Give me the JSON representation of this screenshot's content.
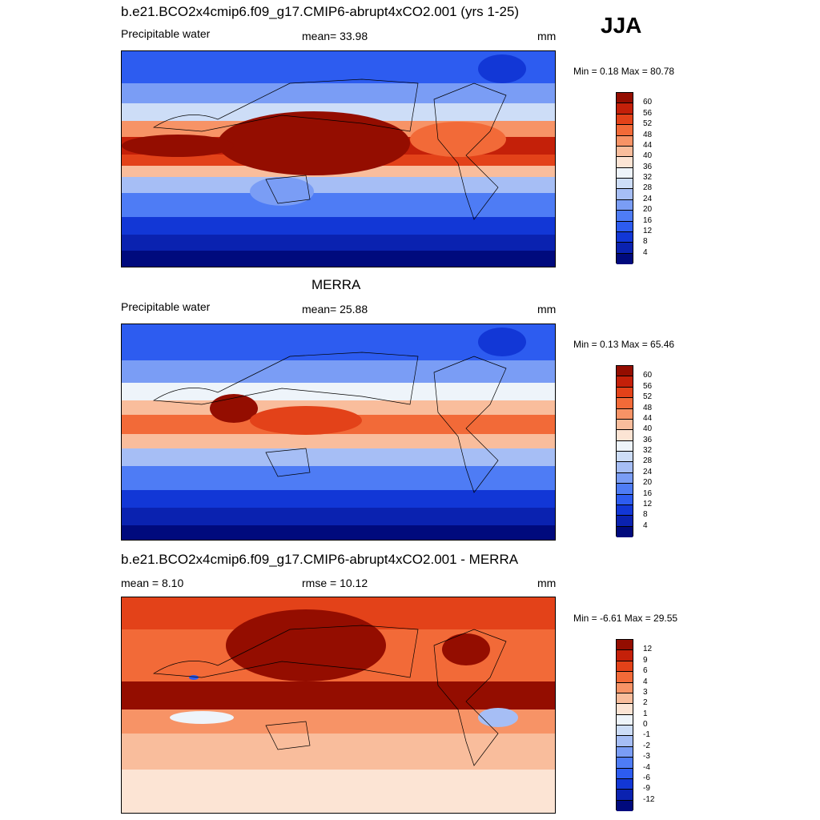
{
  "season": "JJA",
  "colors": {
    "main": [
      "#000a7d",
      "#0a22b0",
      "#1237d6",
      "#2d5cf0",
      "#4e7cf5",
      "#7a9df5",
      "#a6bef5",
      "#cdddf7",
      "#eef4fa",
      "#fce4d4",
      "#f9bd9c",
      "#f79366",
      "#f26a38",
      "#e34219",
      "#c42009",
      "#940d00"
    ],
    "diff": [
      "#000a7d",
      "#0a22b0",
      "#1237d6",
      "#2d5cf0",
      "#4e7cf5",
      "#7a9df5",
      "#a6bef5",
      "#cdddf7",
      "#eef4fa",
      "#fce4d4",
      "#f9bd9c",
      "#f79366",
      "#f26a38",
      "#e34219",
      "#c42009",
      "#940d00"
    ]
  },
  "panels": [
    {
      "title": "b.e21.BCO2x4cmip6.f09_g17.CMIP6-abrupt4xCO2.001 (yrs 1-25)",
      "left_text": "Precipitable water",
      "center_text": "mean=  33.98",
      "units": "mm",
      "minmax": "Min =   0.18 Max =  80.78",
      "levels": [
        "60",
        "56",
        "52",
        "48",
        "44",
        "40",
        "36",
        "32",
        "28",
        "24",
        "20",
        "16",
        "12",
        "8",
        "4"
      ]
    },
    {
      "title": "MERRA",
      "left_text": "Precipitable water",
      "center_text": "mean=  25.88",
      "units": "mm",
      "minmax": "Min =   0.13 Max =  65.46",
      "levels": [
        "60",
        "56",
        "52",
        "48",
        "44",
        "40",
        "36",
        "32",
        "28",
        "24",
        "20",
        "16",
        "12",
        "8",
        "4"
      ]
    },
    {
      "title": "b.e21.BCO2x4cmip6.f09_g17.CMIP6-abrupt4xCO2.001 - MERRA",
      "left_text": "mean =   8.10",
      "center_text": "rmse =  10.12",
      "units": "mm",
      "minmax": "Min =  -6.61 Max =  29.55",
      "levels": [
        "12",
        "9",
        "6",
        "4",
        "3",
        "2",
        "1",
        "0",
        "-1",
        "-2",
        "-3",
        "-4",
        "-6",
        "-9",
        "-12"
      ]
    }
  ],
  "chart_data": [
    {
      "type": "heatmap",
      "title": "b.e21.BCO2x4cmip6.f09_g17.CMIP6-abrupt4xCO2.001 (yrs 1-25)",
      "variable": "Precipitable water",
      "units": "mm",
      "mean": 33.98,
      "min": 0.18,
      "max": 80.78,
      "contour_levels": [
        4,
        8,
        12,
        16,
        20,
        24,
        28,
        32,
        36,
        40,
        44,
        48,
        52,
        56,
        60
      ]
    },
    {
      "type": "heatmap",
      "title": "MERRA",
      "variable": "Precipitable water",
      "units": "mm",
      "mean": 25.88,
      "min": 0.13,
      "max": 65.46,
      "contour_levels": [
        4,
        8,
        12,
        16,
        20,
        24,
        28,
        32,
        36,
        40,
        44,
        48,
        52,
        56,
        60
      ]
    },
    {
      "type": "heatmap",
      "title": "b.e21.BCO2x4cmip6.f09_g17.CMIP6-abrupt4xCO2.001 - MERRA",
      "units": "mm",
      "mean": 8.1,
      "rmse": 10.12,
      "min": -6.61,
      "max": 29.55,
      "contour_levels": [
        -12,
        -9,
        -6,
        -4,
        -3,
        -2,
        -1,
        0,
        1,
        2,
        3,
        4,
        6,
        9,
        12
      ]
    }
  ]
}
